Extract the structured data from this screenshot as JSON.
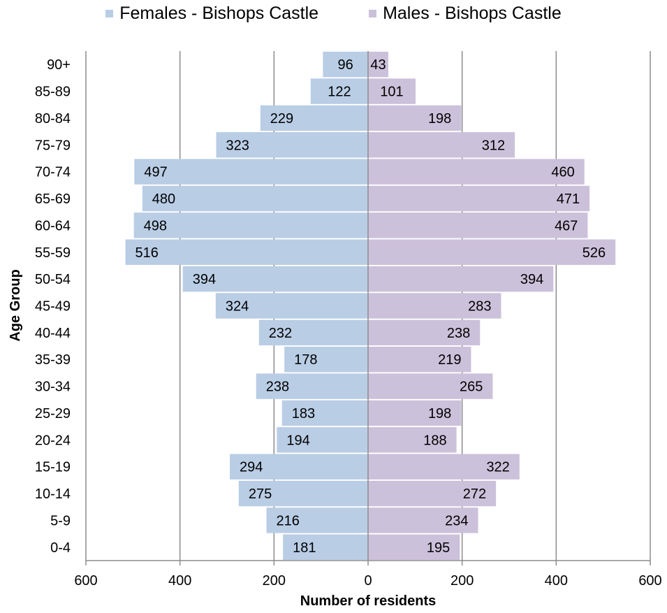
{
  "chart_data": {
    "type": "bar",
    "orientation": "horizontal",
    "subtype": "population-pyramid",
    "categories": [
      "0-4",
      "5-9",
      "10-14",
      "15-19",
      "20-24",
      "25-29",
      "30-34",
      "35-39",
      "40-44",
      "45-49",
      "50-54",
      "55-59",
      "60-64",
      "65-69",
      "70-74",
      "75-79",
      "80-84",
      "85-89",
      "90+"
    ],
    "series": [
      {
        "name": "Females - Bishops Castle",
        "color": "#b9cde5",
        "side": "left",
        "values": [
          181,
          216,
          275,
          294,
          194,
          183,
          238,
          178,
          232,
          324,
          394,
          516,
          498,
          480,
          497,
          323,
          229,
          122,
          96
        ]
      },
      {
        "name": "Males - Bishops Castle",
        "color": "#ccc1da",
        "side": "right",
        "values": [
          195,
          234,
          272,
          322,
          188,
          198,
          265,
          219,
          238,
          283,
          394,
          526,
          467,
          471,
          460,
          312,
          198,
          101,
          43
        ]
      }
    ],
    "xlabel": "Number of residents",
    "ylabel": "Age Group",
    "xlim": [
      -600,
      600
    ],
    "x_ticks": [
      -600,
      -400,
      -200,
      0,
      200,
      400,
      600
    ],
    "x_tick_labels": [
      "600",
      "400",
      "200",
      "0",
      "200",
      "400",
      "600"
    ],
    "grid": "vertical",
    "legend_position": "top"
  }
}
